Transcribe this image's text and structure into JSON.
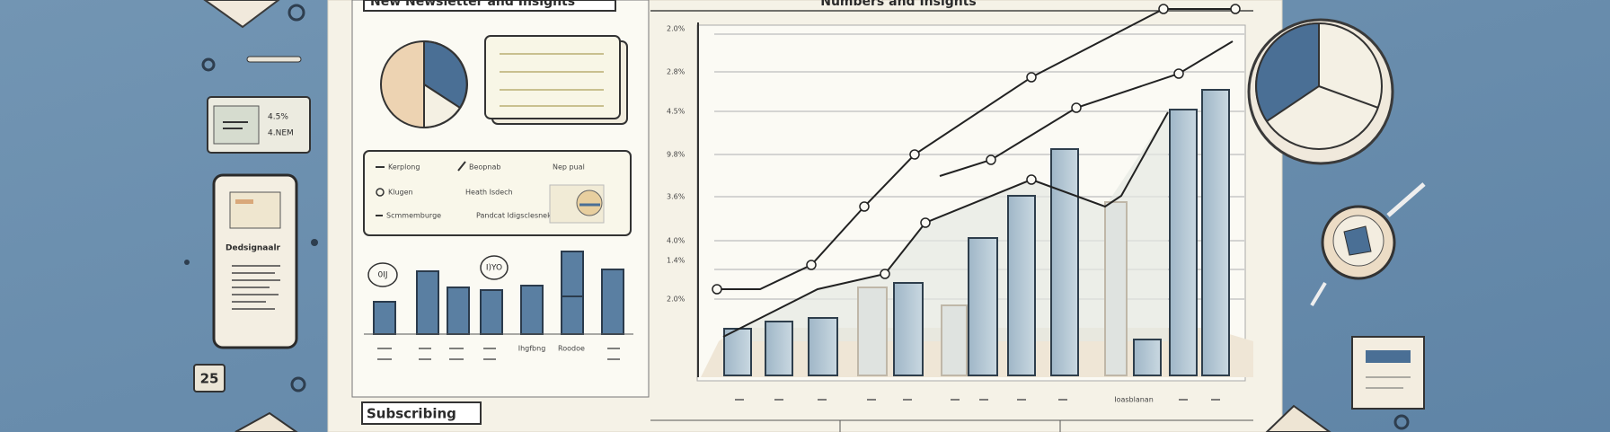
{
  "header": {
    "title": "New Newsletter and Insights",
    "chart_title": "Numbers and Insights"
  },
  "left_card": {
    "line1": "4.5%",
    "line2": "4.NEM"
  },
  "phone": {
    "label": "Dedsignaalr"
  },
  "calendar": {
    "day": "25"
  },
  "legend_panel": {
    "items": [
      "Kerplong",
      "Beopnab",
      "Nep pual",
      "Klugen",
      "Heath Isdech",
      "Scmmemburge",
      "Pandcat Idigsclesnek"
    ]
  },
  "mini_chart": {
    "bubbles": [
      "0IJ",
      "I)YO"
    ],
    "labels": [
      "Ihgfbng",
      "Roodoe"
    ]
  },
  "main_chart": {
    "y_labels": [
      "2.0%",
      "2.8%",
      "4.5%",
      "9.8%",
      "3.6%",
      "4.0%",
      "1.4%",
      "2.0%"
    ],
    "x_label": "Ioasblanan"
  },
  "footer": {
    "label": "Subscribing"
  }
}
